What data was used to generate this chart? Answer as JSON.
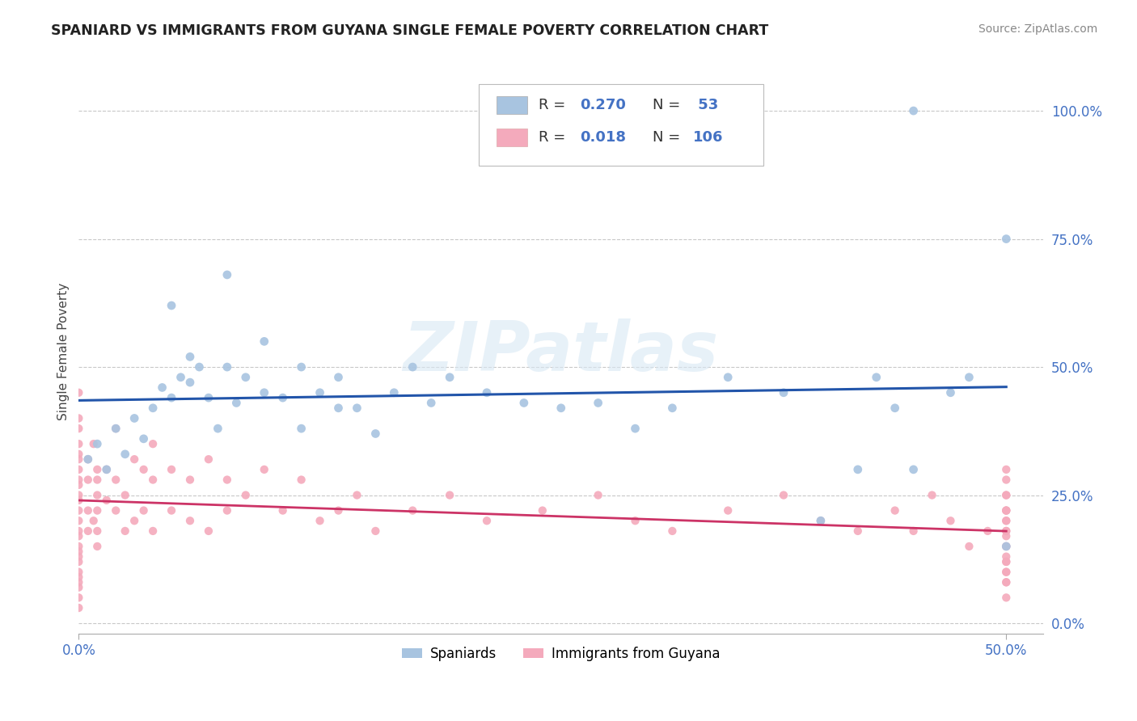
{
  "title": "SPANIARD VS IMMIGRANTS FROM GUYANA SINGLE FEMALE POVERTY CORRELATION CHART",
  "source": "Source: ZipAtlas.com",
  "xlabel_ticks": [
    "0.0%",
    "50.0%"
  ],
  "ylabel_ticks": [
    "0.0%",
    "25.0%",
    "50.0%",
    "75.0%",
    "100.0%"
  ],
  "xlim": [
    0.0,
    0.52
  ],
  "ylim": [
    -0.02,
    1.08
  ],
  "ylabel": "Single Female Poverty",
  "spaniards_color": "#a8c4e0",
  "guyana_color": "#f4aabc",
  "trendline_spaniards_color": "#2255aa",
  "trendline_guyana_color": "#cc3366",
  "watermark_text": "ZIPatlas",
  "legend_R1": "R = 0.270",
  "legend_N1": "N =  53",
  "legend_R2": "R = 0.018",
  "legend_N2": "N = 106",
  "spaniards_x": [
    0.005,
    0.01,
    0.015,
    0.02,
    0.025,
    0.03,
    0.035,
    0.04,
    0.045,
    0.05,
    0.055,
    0.06,
    0.065,
    0.07,
    0.075,
    0.08,
    0.085,
    0.09,
    0.1,
    0.11,
    0.12,
    0.13,
    0.14,
    0.15,
    0.16,
    0.17,
    0.18,
    0.19,
    0.2,
    0.22,
    0.24,
    0.26,
    0.28,
    0.3,
    0.32,
    0.35,
    0.38,
    0.4,
    0.42,
    0.43,
    0.44,
    0.45,
    0.47,
    0.48,
    0.5,
    0.05,
    0.06,
    0.08,
    0.1,
    0.12,
    0.14,
    0.5,
    0.45
  ],
  "spaniards_y": [
    0.32,
    0.35,
    0.3,
    0.38,
    0.33,
    0.4,
    0.36,
    0.42,
    0.46,
    0.44,
    0.48,
    0.47,
    0.5,
    0.44,
    0.38,
    0.5,
    0.43,
    0.48,
    0.55,
    0.44,
    0.5,
    0.45,
    0.48,
    0.42,
    0.37,
    0.45,
    0.5,
    0.43,
    0.48,
    0.45,
    0.43,
    0.42,
    0.43,
    0.38,
    0.42,
    0.48,
    0.45,
    0.2,
    0.3,
    0.48,
    0.42,
    0.3,
    0.45,
    0.48,
    0.75,
    0.62,
    0.52,
    0.68,
    0.45,
    0.38,
    0.42,
    0.15,
    1.0
  ],
  "guyana_x": [
    0.0,
    0.0,
    0.0,
    0.0,
    0.0,
    0.0,
    0.0,
    0.0,
    0.0,
    0.0,
    0.0,
    0.0,
    0.0,
    0.0,
    0.0,
    0.0,
    0.0,
    0.0,
    0.0,
    0.0,
    0.0,
    0.0,
    0.0,
    0.0,
    0.0,
    0.005,
    0.005,
    0.005,
    0.005,
    0.008,
    0.008,
    0.01,
    0.01,
    0.01,
    0.01,
    0.01,
    0.01,
    0.015,
    0.015,
    0.02,
    0.02,
    0.02,
    0.025,
    0.025,
    0.03,
    0.03,
    0.035,
    0.035,
    0.04,
    0.04,
    0.04,
    0.05,
    0.05,
    0.06,
    0.06,
    0.07,
    0.07,
    0.08,
    0.08,
    0.09,
    0.1,
    0.11,
    0.12,
    0.13,
    0.14,
    0.15,
    0.16,
    0.18,
    0.2,
    0.22,
    0.25,
    0.28,
    0.3,
    0.32,
    0.35,
    0.38,
    0.4,
    0.42,
    0.44,
    0.45,
    0.46,
    0.47,
    0.48,
    0.49,
    0.5,
    0.5,
    0.5,
    0.5,
    0.5,
    0.5,
    0.5,
    0.5,
    0.5,
    0.5,
    0.5,
    0.5,
    0.5,
    0.5,
    0.5,
    0.5,
    0.5,
    0.5,
    0.5,
    0.5,
    0.5,
    0.5
  ],
  "guyana_y": [
    0.22,
    0.2,
    0.18,
    0.15,
    0.12,
    0.08,
    0.05,
    0.03,
    0.25,
    0.28,
    0.3,
    0.33,
    0.35,
    0.1,
    0.4,
    0.45,
    0.38,
    0.07,
    0.14,
    0.32,
    0.27,
    0.24,
    0.17,
    0.13,
    0.09,
    0.22,
    0.18,
    0.28,
    0.32,
    0.2,
    0.35,
    0.25,
    0.22,
    0.3,
    0.18,
    0.28,
    0.15,
    0.3,
    0.24,
    0.28,
    0.22,
    0.38,
    0.25,
    0.18,
    0.32,
    0.2,
    0.3,
    0.22,
    0.28,
    0.35,
    0.18,
    0.3,
    0.22,
    0.28,
    0.2,
    0.32,
    0.18,
    0.28,
    0.22,
    0.25,
    0.3,
    0.22,
    0.28,
    0.2,
    0.22,
    0.25,
    0.18,
    0.22,
    0.25,
    0.2,
    0.22,
    0.25,
    0.2,
    0.18,
    0.22,
    0.25,
    0.2,
    0.18,
    0.22,
    0.18,
    0.25,
    0.2,
    0.15,
    0.18,
    0.1,
    0.12,
    0.15,
    0.18,
    0.2,
    0.22,
    0.25,
    0.28,
    0.3,
    0.12,
    0.15,
    0.08,
    0.18,
    0.22,
    0.25,
    0.05,
    0.08,
    0.1,
    0.13,
    0.17,
    0.2,
    0.22
  ]
}
